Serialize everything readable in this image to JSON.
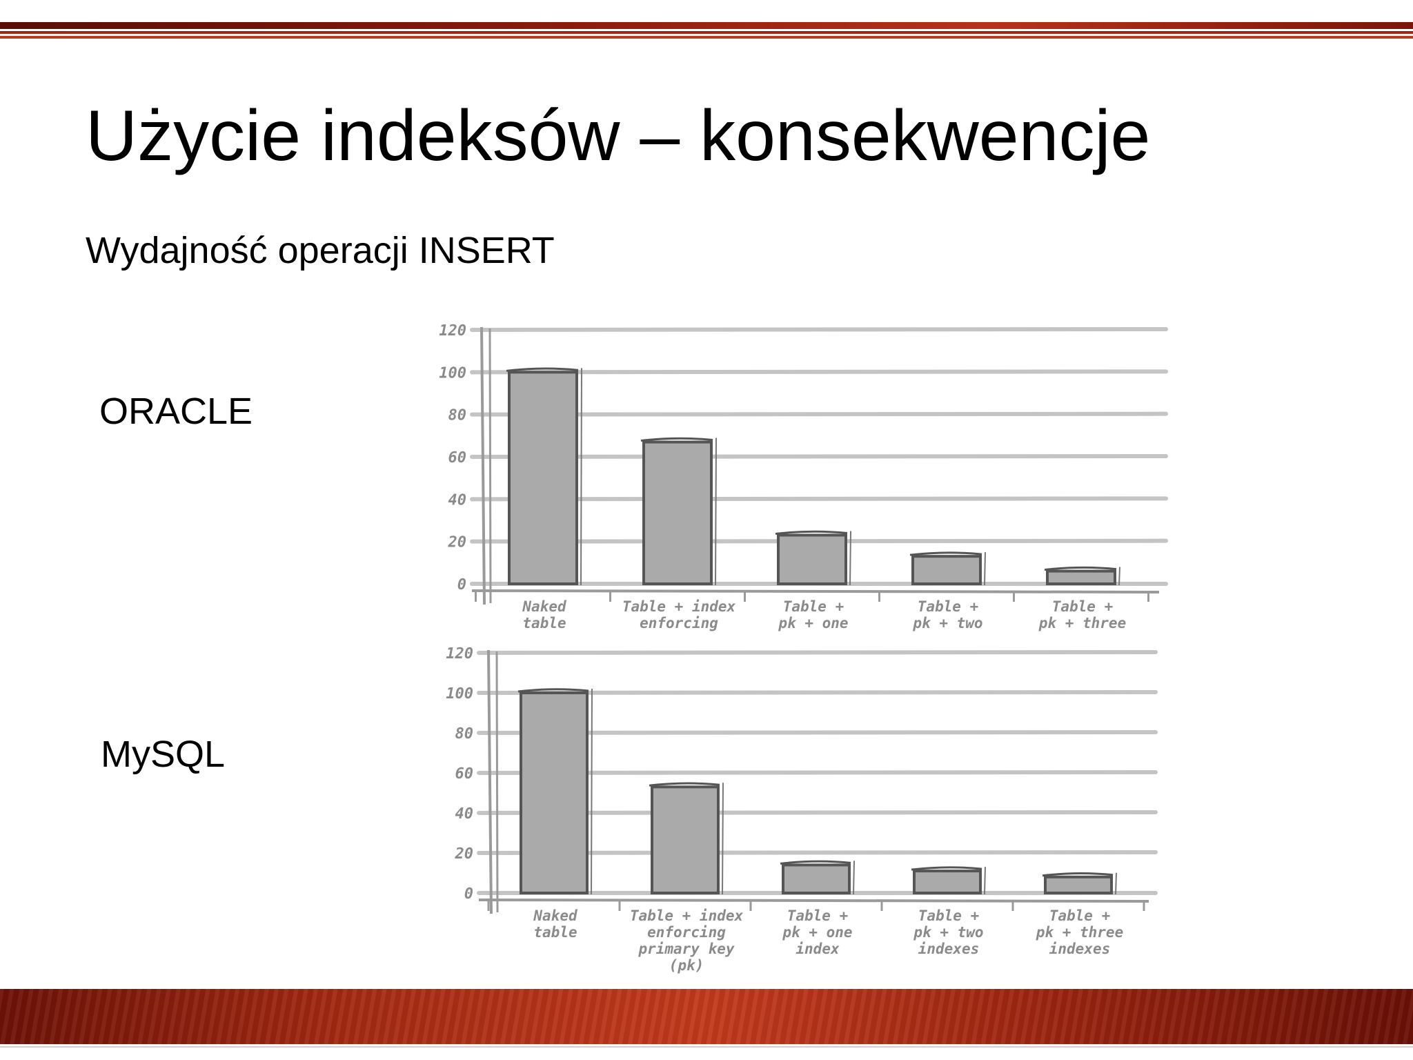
{
  "slide": {
    "title": "Użycie indeksów – konsekwencje",
    "subtitle": "Wydajność operacji INSERT",
    "oracle_label": "ORACLE",
    "mysql_label": "MySQL"
  },
  "colors": {
    "bar_fill": "#aaaaaa",
    "bar_stroke": "#555555",
    "grid": "#c4c4c4",
    "axis": "#9a9a9a",
    "label_text": "#8a8a8a",
    "accent_band": "#a52a12"
  },
  "chart_data": [
    {
      "type": "bar",
      "id": "oracle",
      "title": "",
      "xlabel": "",
      "ylabel": "",
      "ylim": [
        0,
        120
      ],
      "yticks": [
        "0",
        "20",
        "40",
        "60",
        "80",
        "100",
        "120"
      ],
      "grid": true,
      "categories": [
        [
          "Naked",
          "table"
        ],
        [
          "Table + index",
          "enforcing"
        ],
        [
          "Table +",
          "pk + one"
        ],
        [
          "Table +",
          "pk + two"
        ],
        [
          "Table +",
          "pk + three"
        ]
      ],
      "values": [
        100,
        67,
        23,
        13,
        6
      ]
    },
    {
      "type": "bar",
      "id": "mysql",
      "title": "",
      "xlabel": "",
      "ylabel": "",
      "ylim": [
        0,
        120
      ],
      "yticks": [
        "0",
        "20",
        "40",
        "60",
        "80",
        "100",
        "120"
      ],
      "grid": true,
      "categories": [
        [
          "Naked",
          "table"
        ],
        [
          "Table + index",
          "enforcing",
          "primary key",
          "(pk)"
        ],
        [
          "Table +",
          "pk + one",
          "index"
        ],
        [
          "Table +",
          "pk + two",
          "indexes"
        ],
        [
          "Table +",
          "pk + three",
          "indexes"
        ]
      ],
      "values": [
        100,
        53,
        14,
        11,
        8
      ]
    }
  ]
}
